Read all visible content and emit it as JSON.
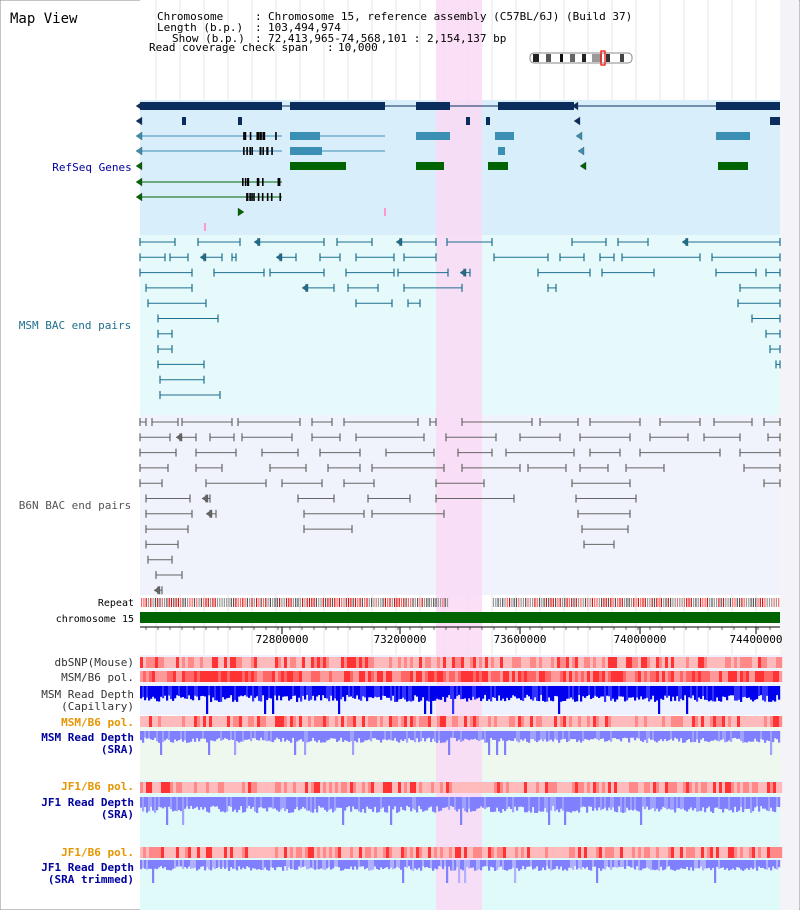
{
  "title": "Map View",
  "header": {
    "chromosome_label": "Chromosome",
    "chromosome_value": "Chromosome 15, reference assembly (C57BL/6J) (Build 37)",
    "length_label": "Length (b.p.)",
    "length_value": "103,494,974",
    "show_label": "Show (b.p.)",
    "show_value": "72,413,965-74,568,101 : 2,154,137 bp",
    "coverage_label": "Read coverage check span",
    "coverage_value": "10,000"
  },
  "tracks": {
    "refseq": "RefSeq Genes",
    "msm_bac": "MSM BAC end pairs",
    "b6n_bac": "B6N BAC end pairs",
    "repeat": "Repeat",
    "chromosome": "chromosome 15"
  },
  "axis": {
    "ticks": [
      "72800000",
      "73200000",
      "73600000",
      "74000000",
      "74400000"
    ]
  },
  "lower_tracks": [
    {
      "id": "dbsnp",
      "lines": [
        "dbSNP(Mouse)"
      ],
      "color": "#333333"
    },
    {
      "id": "msm-b6-pol-1",
      "lines": [
        "MSM/B6 pol."
      ],
      "color": "#333333"
    },
    {
      "id": "msm-read-depth-capillary",
      "lines": [
        "MSM Read Depth",
        "(Capillary)"
      ],
      "color": "#333333"
    },
    {
      "id": "msm-b6-pol-2",
      "lines": [
        "MSM/B6 pol."
      ],
      "color": "#e69500"
    },
    {
      "id": "msm-read-depth-sra",
      "lines": [
        "MSM Read Depth",
        "(SRA)"
      ],
      "color": "#0000a0"
    },
    {
      "id": "jf1-b6-pol-1",
      "lines": [
        "JF1/B6 pol."
      ],
      "color": "#e69500"
    },
    {
      "id": "jf1-read-depth-sra",
      "lines": [
        "JF1 Read Depth",
        "(SRA)"
      ],
      "color": "#0000a0"
    },
    {
      "id": "jf1-b6-pol-2",
      "lines": [
        "JF1/B6 pol."
      ],
      "color": "#e69500"
    },
    {
      "id": "jf1-read-depth-sra-trimmed",
      "lines": [
        "JF1 Read Depth",
        "(SRA trimmed)"
      ],
      "color": "#0000a0"
    }
  ],
  "colors": {
    "refseq_dark": "#0b2d5e",
    "refseq_teal": "#3b8fb5",
    "refseq_green": "#006400",
    "msm_line": "#1e6f8f",
    "b6n_line": "#666666",
    "highlight": "#f9d9f4",
    "chrom_bar": "#006400",
    "depth_capillary": "#0000ee",
    "depth_sra": "#8080ff"
  }
}
